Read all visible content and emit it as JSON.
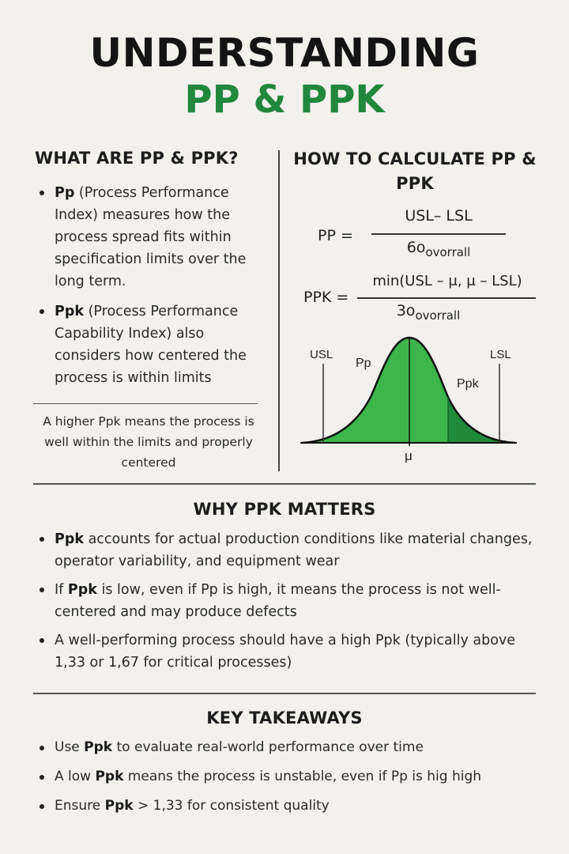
{
  "header": {
    "title_line1": "UNDERSTANDING",
    "title_line2": "PP & PPK"
  },
  "colors": {
    "accent": "#20873c",
    "curve_fill": "#3cb64a",
    "curve_dark": "#1f8a3a"
  },
  "what": {
    "heading": "WHAT ARE PP & PPK?",
    "bullets": [
      {
        "bold": "Pp",
        "text": " (Process Performance Index) measures how the process spread fits within specification limits over the long term."
      },
      {
        "bold": "Ppk",
        "text": " (Process Performance Capability Index) also considers how centered the process is within limits"
      }
    ],
    "note": "A higher Ppk means the process is well within the limits and properly centered"
  },
  "calc": {
    "heading": "HOW TO CALCULATE PP & PPK",
    "pp_label": "PP =",
    "pp_numerator": "USL– LSL",
    "pp_denominator_main": "6o",
    "pp_denominator_sub": "ovorrall",
    "ppk_label": "PPK =",
    "ppk_numerator": "min(USL – μ, μ – LSL)",
    "ppk_denominator_main": "3o",
    "ppk_denominator_sub": "ovorrall",
    "curve_labels": {
      "usl": "USL",
      "lsl": "LSL",
      "pp": "Pp",
      "ppk": "Ppk",
      "mu": "μ"
    }
  },
  "why": {
    "heading": "WHY PPK MATTERS",
    "bullets": [
      {
        "pre": "",
        "bold": "Ppk",
        "text": " accounts for actual production conditions like material changes, operator variability, and equipment wear"
      },
      {
        "pre": "If ",
        "bold": "Ppk",
        "text": " is low, even if Pp is high, it means the process is not well-centered and may produce defects"
      },
      {
        "pre": "",
        "bold": "",
        "text": "A well-performing process should have a high Ppk (typically above 1,33 or 1,67 for critical processes)"
      }
    ]
  },
  "key": {
    "heading": "KEY TAKEAWAYS",
    "bullets": [
      {
        "pre": "Use ",
        "bold": "Ppk",
        "text": " to evaluate real-world performance over  time"
      },
      {
        "pre": "A low ",
        "bold": "Ppk",
        "text": " means the process is unstable, even if Pp is hig high"
      },
      {
        "pre": "Ensure ",
        "bold": "Ppk",
        "text": " > 1,33 for consistent quality"
      }
    ]
  }
}
